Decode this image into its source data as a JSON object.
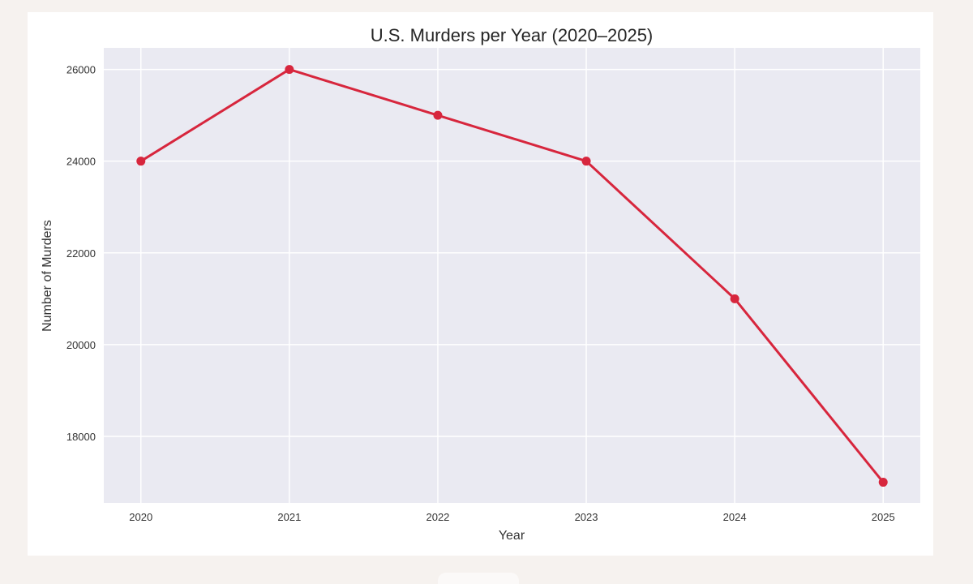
{
  "chart_data": {
    "type": "line",
    "title": "U.S. Murders per Year (2020–2025)",
    "xlabel": "Year",
    "ylabel": "Number of Murders",
    "x": [
      2020,
      2021,
      2022,
      2023,
      2024,
      2025
    ],
    "series": [
      {
        "values": [
          24000,
          26000,
          25000,
          24000,
          21000,
          17000
        ]
      }
    ],
    "xlim": [
      2019.75,
      2025.25
    ],
    "ylim": [
      16550,
      26470
    ],
    "yticks": [
      18000,
      20000,
      22000,
      24000,
      26000
    ],
    "xticks": [
      2020,
      2021,
      2022,
      2023,
      2024,
      2025
    ],
    "grid": true,
    "line_color": "#d7263d",
    "plot_background": "#eaeaf2"
  }
}
